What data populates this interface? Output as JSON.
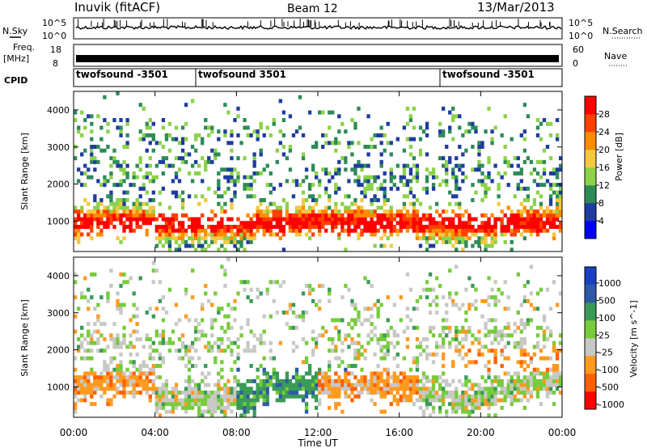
{
  "header": {
    "station": "Inuvik (fitACF)",
    "beam": "Beam 12",
    "date": "13/Mar/2013"
  },
  "side_labels": {
    "nsky": "N.Sky",
    "freq_line1": "Freq.",
    "freq_line2": "[MHz]",
    "cpid": "CPID",
    "nsearch": "N.Search",
    "nave": "Nave"
  },
  "strip_ticks": {
    "nsky": [
      "10^5",
      "10^0"
    ],
    "nsearch": [
      "10^5",
      "10^0"
    ],
    "freq": [
      "18",
      "8"
    ],
    "nave": [
      "60",
      "0"
    ]
  },
  "cpid_segments": [
    {
      "label": "twofsound -3501",
      "start_hour": 0
    },
    {
      "label": "twofsound 3501",
      "start_hour": 6
    },
    {
      "label": "twofsound -3501",
      "start_hour": 18
    }
  ],
  "colors": {
    "power": [
      "#0000ff",
      "#1e3ca0",
      "#2e8b57",
      "#8cd24a",
      "#f5c842",
      "#ff8c00",
      "#ff4000",
      "#ff0000"
    ],
    "velocity": [
      "#ff0000",
      "#ff6000",
      "#ff9a20",
      "#c8c8c4",
      "#76cc3c",
      "#3a9a58",
      "#2e5aa8",
      "#1840c0"
    ]
  },
  "chart_data": [
    {
      "type": "heatmap",
      "title": "Power",
      "ylabel": "Slant Range [km]",
      "ylim": [
        180,
        4500
      ],
      "yticks": [
        1000,
        2000,
        3000,
        4000
      ],
      "xlim": [
        0,
        24
      ],
      "colorbar": {
        "label": "Power [dB]",
        "ticks": [
          4,
          8,
          12,
          16,
          20,
          24,
          28
        ],
        "range": [
          0,
          32
        ]
      }
    },
    {
      "type": "heatmap",
      "title": "Velocity",
      "xlabel": "Time UT",
      "ylabel": "Slant Range [km]",
      "ylim": [
        180,
        4500
      ],
      "yticks": [
        1000,
        2000,
        3000,
        4000
      ],
      "xlim": [
        0,
        24
      ],
      "xticks": [
        "00:00",
        "04:00",
        "08:00",
        "12:00",
        "16:00",
        "20:00",
        "00:00"
      ],
      "colorbar": {
        "label": "Velocity [m s^-1]",
        "ticks": [
          "1000",
          "500",
          "100",
          "25",
          "-25",
          "-100",
          "-500",
          "-1000"
        ]
      }
    }
  ]
}
